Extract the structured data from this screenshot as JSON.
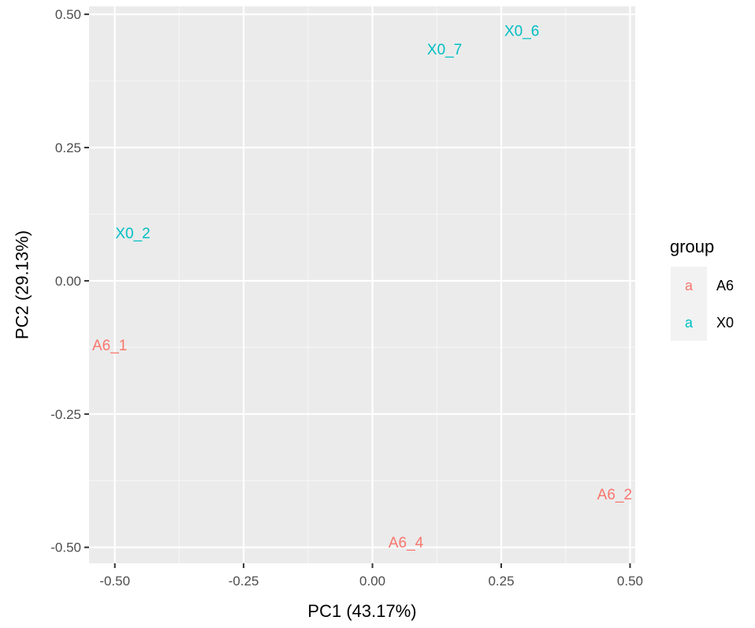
{
  "chart_data": {
    "type": "scatter",
    "title": "",
    "xlabel": "PC1 (43.17%)",
    "ylabel": "PC2 (29.13%)",
    "xlim": [
      -0.55,
      0.51
    ],
    "ylim": [
      -0.53,
      0.515
    ],
    "xticks": [
      -0.5,
      -0.25,
      0.0,
      0.25,
      0.5
    ],
    "xtick_labels": [
      "-0.50",
      "-0.25",
      "0.00",
      "0.25",
      "0.50"
    ],
    "yticks": [
      -0.5,
      -0.25,
      0.0,
      0.25,
      0.5
    ],
    "ytick_labels": [
      "-0.50",
      "-0.25",
      "0.00",
      "0.25",
      "0.50"
    ],
    "grid": true,
    "legend": {
      "title": "group",
      "position": "right",
      "key_glyph": "a",
      "entries": [
        {
          "name": "A6",
          "color": "#F8766D"
        },
        {
          "name": "X0",
          "color": "#00BFC4"
        }
      ]
    },
    "points": [
      {
        "label": "X0_6",
        "group": "X0",
        "x": 0.29,
        "y": 0.47
      },
      {
        "label": "X0_7",
        "group": "X0",
        "x": 0.14,
        "y": 0.435
      },
      {
        "label": "X0_2",
        "group": "X0",
        "x": -0.465,
        "y": 0.09
      },
      {
        "label": "A6_1",
        "group": "A6",
        "x": -0.51,
        "y": -0.12
      },
      {
        "label": "A6_2",
        "group": "A6",
        "x": 0.47,
        "y": -0.4
      },
      {
        "label": "A6_4",
        "group": "A6",
        "x": 0.065,
        "y": -0.49
      }
    ],
    "colors": {
      "panel_background": "#EBEBEB",
      "grid_major": "#FFFFFF",
      "grid_minor": "#F5F5F5",
      "legend_key_background": "#F2F2F2"
    }
  }
}
